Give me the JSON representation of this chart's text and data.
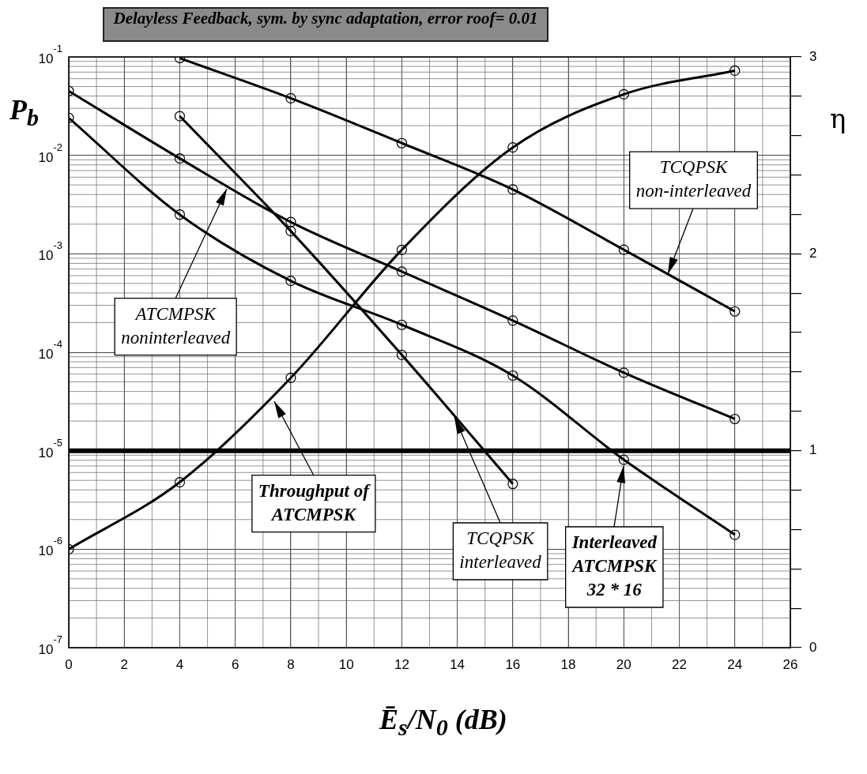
{
  "chart_data": {
    "type": "line",
    "title": "Delayless Feedback, sym. by sync adaptation, error roof= 0.01",
    "xlabel": "Ē$_{s}$/N$_{0}$ (dB)",
    "ylabel": "P$_{b}$",
    "y2label": "η",
    "series": [
      {
        "color": "#000000",
        "x": [
          4,
          8,
          12,
          16,
          20,
          24
        ],
        "values": [
          0.097,
          0.038,
          0.0133,
          0.0045,
          0.0011,
          0.00026
        ]
      },
      {
        "color": "#000000",
        "x": [
          0,
          4,
          8,
          12,
          16,
          20,
          24
        ],
        "values": [
          0.045,
          0.0093,
          0.0021,
          0.00066,
          0.00021,
          6.2e-05,
          2.1e-05
        ]
      },
      {
        "color": "#000000",
        "x": [
          0,
          4,
          8,
          12,
          16,
          20,
          24
        ],
        "values": [
          0.024,
          0.0025,
          0.00053,
          0.00019,
          5.8e-05,
          8.1e-06,
          1.4e-06
        ]
      },
      {
        "color": "#000000",
        "x": [
          4,
          8,
          12,
          16
        ],
        "values": [
          0.025,
          0.0017,
          9.4e-05,
          4.6e-06
        ]
      },
      {
        "color": "#000000",
        "axis": "y2",
        "x": [
          0,
          4,
          8,
          12,
          16,
          20,
          24
        ],
        "values": [
          0.5,
          0.84,
          1.37,
          2.02,
          2.54,
          2.81,
          2.93
        ]
      }
    ],
    "annotations": [
      {
        "text": "ATCMPSK noninterleaved",
        "x": 5.7,
        "y": 0.0046
      },
      {
        "text": "TCQPSK non-interleaved",
        "x": 21.6,
        "y": 0.00062
      },
      {
        "text": "Throughput of ATCMPSK",
        "x": 7.4,
        "y": 3.2e-05
      },
      {
        "text": "TCQPSK interleaved",
        "x": 13.9,
        "y": 2.2e-05
      },
      {
        "text": "Interleaved ATCMPSK 32 * 16",
        "x": 20,
        "y": 7e-06
      }
    ],
    "ref_lines": [
      {
        "axis": "y",
        "value": 1e-05,
        "color": "#000000"
      }
    ],
    "log": "y",
    "grid": true,
    "marker": "circle",
    "line_style": "solid",
    "legend": false,
    "xlim": [
      0,
      26
    ],
    "xticks": [
      0,
      2,
      4,
      6,
      8,
      10,
      12,
      14,
      16,
      18,
      20,
      22,
      24,
      26
    ],
    "ylim": [
      1e-07,
      0.1
    ],
    "yticks": [
      {
        "value": 1e-07,
        "label": "10$^{-7}$"
      },
      {
        "value": 1e-06,
        "label": "10$^{-6}$"
      },
      {
        "value": 1e-05,
        "label": "10$^{-5}$"
      },
      {
        "value": 0.0001,
        "label": "10$^{-4}$"
      },
      {
        "value": 0.001,
        "label": "10$^{-3}$"
      },
      {
        "value": 0.01,
        "label": "10$^{-2}$"
      },
      {
        "value": 0.1,
        "label": "10$^{-1}$"
      }
    ],
    "y2lim": [
      0,
      3
    ],
    "y2ticks": [
      0,
      {
        "value": 0.2,
        "label": null
      },
      {
        "value": 0.4,
        "label": null
      },
      {
        "value": 0.6,
        "label": null
      },
      {
        "value": 0.8,
        "label": null
      },
      1,
      {
        "value": 1.2,
        "label": null
      },
      {
        "value": 1.4,
        "label": null
      },
      {
        "value": 1.6,
        "label": null
      },
      {
        "value": 1.8,
        "label": null
      },
      2,
      {
        "value": 2.2,
        "label": null
      },
      {
        "value": 2.4,
        "label": null
      },
      {
        "value": 2.6,
        "label": null
      },
      {
        "value": 2.8,
        "label": null
      },
      3
    ]
  }
}
